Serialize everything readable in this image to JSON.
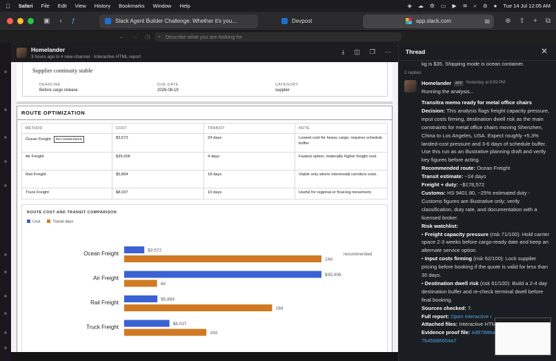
{
  "menubar": {
    "app_name": "Safari",
    "items": [
      "File",
      "Edit",
      "View",
      "History",
      "Bookmarks",
      "Window",
      "Help"
    ],
    "clock": "Tue 14 Jul  12:05 AM"
  },
  "browser": {
    "tabs": [
      {
        "label": "Slack Agent Builder Challenge: Whether it's you..."
      },
      {
        "label": "Devpost"
      },
      {
        "label": "app.slack.com"
      }
    ]
  },
  "slack": {
    "search_placeholder": "Describe what you are looking for"
  },
  "canvas": {
    "author": "Homelander",
    "meta": "3 hours ago in # new-channel · Interactive HTML report",
    "top_card": {
      "text": "Supplier continuity stable",
      "fields": [
        {
          "label": "DEADLINE",
          "value": "Before cargo release"
        },
        {
          "label": "DUE DATE",
          "value": "2026-08-19"
        },
        {
          "label": "CATEGORY",
          "value": "supplier"
        }
      ]
    },
    "route_title": "ROUTE OPTIMIZATION",
    "table": {
      "headers": [
        "METHOD",
        "COST",
        "TRANSIT",
        "NOTE"
      ],
      "rows": [
        {
          "method": "Ocean Freight",
          "badge": "RECOMMENDED",
          "cost": "$3,572",
          "transit": "24 days",
          "note": "Lowest cost for heavy cargo; requires schedule buffer."
        },
        {
          "method": "Air Freight",
          "cost": "$35,006",
          "transit": "4 days",
          "note": "Fastest option; materially higher freight cost."
        },
        {
          "method": "Rail Freight",
          "cost": "$5,894",
          "transit": "18 days",
          "note": "Viable only where intermodal corridors exist."
        },
        {
          "method": "Truck Freight",
          "cost": "$8,037",
          "transit": "10 days",
          "note": "Useful for regional or final-leg movement."
        }
      ]
    },
    "chart_title": "ROUTE COST AND TRANSIT COMPARISON",
    "recommended_label": "recommended"
  },
  "chart_data": {
    "type": "bar",
    "orientation": "horizontal",
    "title": "ROUTE COST AND TRANSIT COMPARISON",
    "categories": [
      "Ocean Freight",
      "Air Freight",
      "Rail Freight",
      "Truck Freight"
    ],
    "series": [
      {
        "name": "Cost",
        "values": [
          3572,
          35006,
          5894,
          8037
        ],
        "labels": [
          "$3,572",
          "$35,006",
          "$5,894",
          "$8,037"
        ],
        "color": "#3a62d3"
      },
      {
        "name": "Transit days",
        "values": [
          24,
          4,
          18,
          10
        ],
        "labels": [
          "24d",
          "4d",
          "18d",
          "10d"
        ],
        "color": "#d17a24"
      }
    ],
    "legend_position": "top-left",
    "annotation": "recommended"
  },
  "thread": {
    "title": "Thread",
    "prev_text": "kg is $35. Shipping mode is ocean container.",
    "replies": "2 replies",
    "author": "Homelander",
    "app_badge": "APP",
    "time": "Yesterday at 8:59 PM",
    "running": "Running the analysis...",
    "memo_title": "Transitra memo ready for metal office chairs",
    "decision_label": "Decision:",
    "decision_text": "This analysis flags freight capacity pressure, input costs firming, destination dwell risk as the main constraints for metal office chairs moving Shenzhen, China to Los Angeles, USA. Expect roughly +5.3% landed-cost pressure and 3-6 days of schedule buffer. Use this run as an illustrative planning draft and verify key figures before acting.",
    "route_label": "Recommended route:",
    "route_value": "Ocean Freight",
    "transit_label": "Transit estimate:",
    "transit_value": "~24 days",
    "freight_label": "Freight + duty:",
    "freight_value": "~$178,572",
    "customs_label": "Customs:",
    "customs_text": "HS 9401.80, ~25% estimated duty - Customs figures are illustrative only; verify classification, duty rate, and documentation with a licensed broker.",
    "watchlist_label": "Risk watchlist:",
    "risks": [
      {
        "name": "Freight capacity pressure",
        "score": "(risk 71/100):",
        "text": "Hold carrier space 2-3 weeks before cargo-ready date and keep an alternate service option."
      },
      {
        "name": "Input costs firming",
        "score": "(risk 62/100):",
        "text": "Lock supplier pricing before booking if the quote is valid for less than 30 days."
      },
      {
        "name": "Destination dwell risk",
        "score": "(risk 61/100):",
        "text": "Build a 2-4 day destination buffer and re-check terminal dwell before final booking."
      }
    ],
    "sources_label": "Sources checked:",
    "sources_value": "7.",
    "full_report_label": "Full report:",
    "full_report_link": "Open interactive r",
    "attached_label": "Attached files:",
    "attached_value": "Interactive HTM",
    "evidence_label": "Evidence proof file:",
    "evidence_link_1": "ed97888a",
    "evidence_link_2": "7b45886654a7"
  }
}
